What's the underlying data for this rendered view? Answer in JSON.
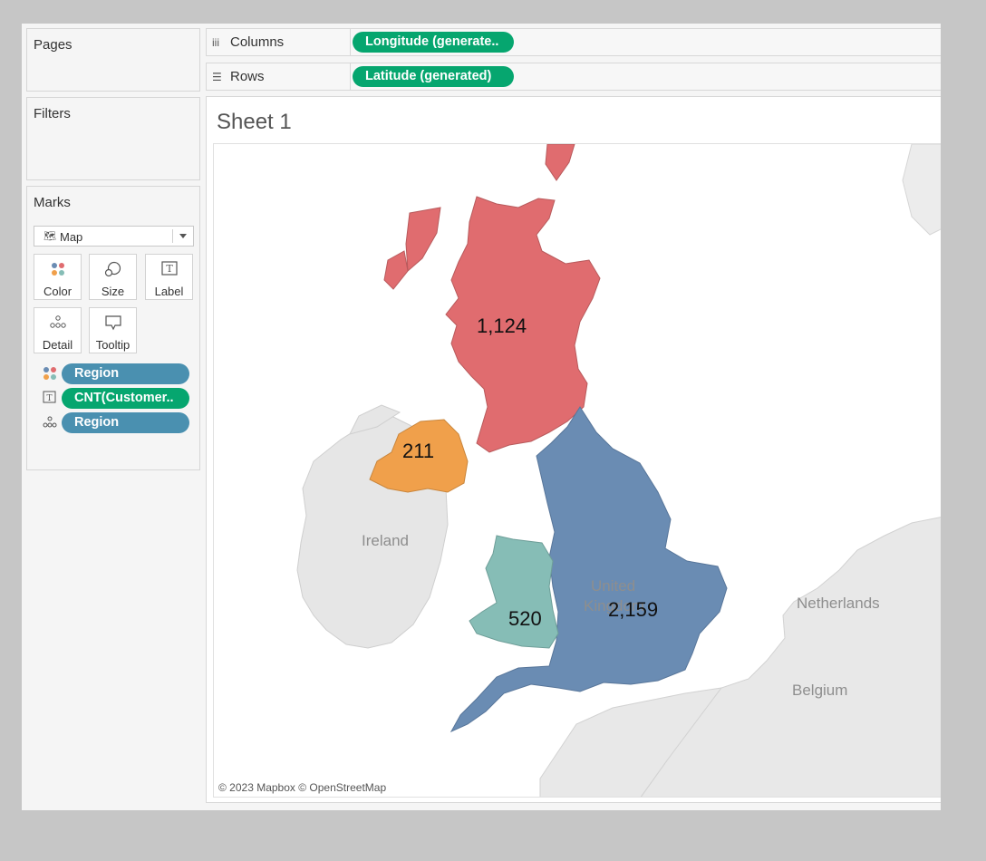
{
  "cards": {
    "pages": {
      "title": "Pages"
    },
    "filters": {
      "title": "Filters"
    },
    "marks": {
      "title": "Marks",
      "mark_type": "Map",
      "buttons": {
        "color": "Color",
        "size": "Size",
        "label": "Label",
        "detail": "Detail",
        "tooltip": "Tooltip"
      },
      "fields": [
        "Region",
        "CNT(Customer..",
        "Region"
      ]
    }
  },
  "shelves": {
    "columns": {
      "label": "Columns",
      "pill": "Longitude (generate.."
    },
    "rows": {
      "label": "Rows",
      "pill": "Latitude (generated)"
    }
  },
  "sheet": {
    "title": "Sheet 1"
  },
  "map": {
    "place_labels": {
      "ireland": "Ireland",
      "uk_line1": "United",
      "uk_line2": "Kingdom",
      "netherlands": "Netherlands",
      "belgium": "Belgium"
    },
    "regions": [
      {
        "name": "Scotland",
        "value": "1,124",
        "color": "#e06c6f"
      },
      {
        "name": "Northern Ireland",
        "value": "211",
        "color": "#f0a04b"
      },
      {
        "name": "Wales",
        "value": "520",
        "color": "#86bdb6"
      },
      {
        "name": "England",
        "value": "2,159",
        "color": "#6a8cb3"
      }
    ],
    "attribution": "© 2023 Mapbox © OpenStreetMap"
  },
  "colors": {
    "green_pill": "#06a66f",
    "blue_pill": "#4a90b0",
    "land": "#e6e6e6",
    "background": "#c6c6c6"
  }
}
